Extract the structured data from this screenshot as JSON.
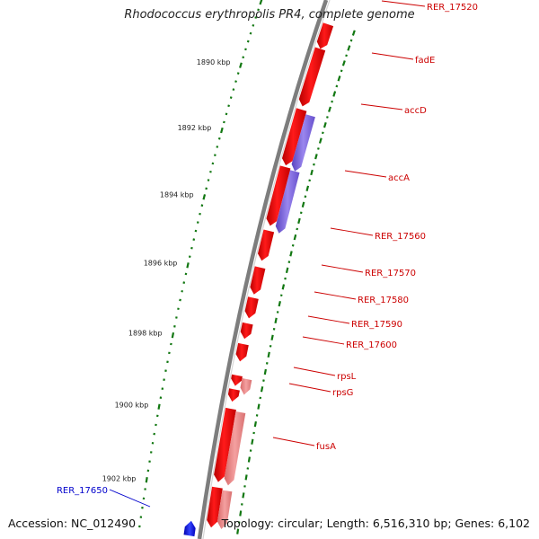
{
  "title": "Rhodococcus erythropolis PR4, complete genome",
  "footer": {
    "accession": "Accession: NC_012490",
    "summary": "Topology: circular; Length: 6,516,310 bp; Genes: 6,102"
  },
  "colors": {
    "backbone": "#8a8a8a",
    "gene_forward": "#ee0000",
    "gene_pale": "#ee8080",
    "gene_purple": "#7f66dd",
    "gene_reverse": "#0000ee",
    "label_forward": "#cc0000",
    "label_reverse": "#0000cc",
    "ticks": "#117711"
  },
  "chart_data": {
    "type": "genome_map",
    "kbp_labels": [
      {
        "label": "1890 kbp",
        "pos": 1890
      },
      {
        "label": "1892 kbp",
        "pos": 1892
      },
      {
        "label": "1894 kbp",
        "pos": 1894
      },
      {
        "label": "1896 kbp",
        "pos": 1896
      },
      {
        "label": "1898 kbp",
        "pos": 1898
      },
      {
        "label": "1900 kbp",
        "pos": 1900
      },
      {
        "label": "1902 kbp",
        "pos": 1902
      }
    ],
    "genes": [
      {
        "name": "RER_17520",
        "track": "outer",
        "start": 1888.0,
        "end": 1888.8,
        "color": "red",
        "strand": "+"
      },
      {
        "name": "",
        "track": "outer",
        "start": 1888.8,
        "end": 1890.65,
        "color": "red",
        "strand": "+"
      },
      {
        "name": "fadE",
        "track": "outer",
        "start": 1890.75,
        "end": 1892.5,
        "color": "red",
        "strand": "+"
      },
      {
        "name": "accD",
        "track": "outer2",
        "start": 1890.85,
        "end": 1892.6,
        "color": "purple",
        "strand": "+"
      },
      {
        "name": "accA",
        "track": "outer2",
        "start": 1892.6,
        "end": 1894.5,
        "color": "purple",
        "strand": "+"
      },
      {
        "name": "",
        "track": "outer",
        "start": 1892.55,
        "end": 1894.35,
        "color": "red",
        "strand": "+"
      },
      {
        "name": "RER_17560",
        "track": "outer",
        "start": 1894.5,
        "end": 1895.4,
        "color": "red",
        "strand": "+"
      },
      {
        "name": "RER_17570",
        "track": "outer",
        "start": 1895.6,
        "end": 1896.4,
        "color": "red",
        "strand": "+"
      },
      {
        "name": "RER_17580",
        "track": "outer",
        "start": 1896.5,
        "end": 1897.1,
        "color": "red",
        "strand": "+"
      },
      {
        "name": "RER_17590",
        "track": "outer",
        "start": 1897.25,
        "end": 1897.7,
        "color": "red",
        "strand": "+"
      },
      {
        "name": "RER_17600",
        "track": "outer",
        "start": 1897.85,
        "end": 1898.35,
        "color": "red",
        "strand": "+"
      },
      {
        "name": "rpsL",
        "track": "outer",
        "start": 1898.75,
        "end": 1899.05,
        "color": "red",
        "strand": "+"
      },
      {
        "name": "rpsL",
        "track": "outer2",
        "start": 1898.8,
        "end": 1899.25,
        "color": "pale",
        "strand": "+"
      },
      {
        "name": "rpsG",
        "track": "outer",
        "start": 1899.15,
        "end": 1899.5,
        "color": "red",
        "strand": "+"
      },
      {
        "name": "fusA",
        "track": "outer",
        "start": 1899.7,
        "end": 1901.75,
        "color": "red",
        "strand": "+"
      },
      {
        "name": "fusA",
        "track": "outer2",
        "start": 1899.75,
        "end": 1901.8,
        "color": "pale",
        "strand": "+"
      },
      {
        "name": "",
        "track": "outer",
        "start": 1901.9,
        "end": 1903.0,
        "color": "red",
        "strand": "+"
      },
      {
        "name": "",
        "track": "outer2",
        "start": 1901.95,
        "end": 1903.0,
        "color": "pale",
        "strand": "+"
      },
      {
        "name": "RER_17650",
        "track": "inner",
        "start": 1902.9,
        "end": 1903.3,
        "color": "blue",
        "strand": "-"
      }
    ],
    "gene_labels": [
      {
        "text": "RER_17520",
        "strand": "+"
      },
      {
        "text": "fadE",
        "strand": "+"
      },
      {
        "text": "accD",
        "strand": "+"
      },
      {
        "text": "accA",
        "strand": "+"
      },
      {
        "text": "RER_17560",
        "strand": "+"
      },
      {
        "text": "RER_17570",
        "strand": "+"
      },
      {
        "text": "RER_17580",
        "strand": "+"
      },
      {
        "text": "RER_17590",
        "strand": "+"
      },
      {
        "text": "RER_17600",
        "strand": "+"
      },
      {
        "text": "rpsL",
        "strand": "+"
      },
      {
        "text": "rpsG",
        "strand": "+"
      },
      {
        "text": "fusA",
        "strand": "+"
      },
      {
        "text": "RER_17650",
        "strand": "-"
      }
    ]
  }
}
